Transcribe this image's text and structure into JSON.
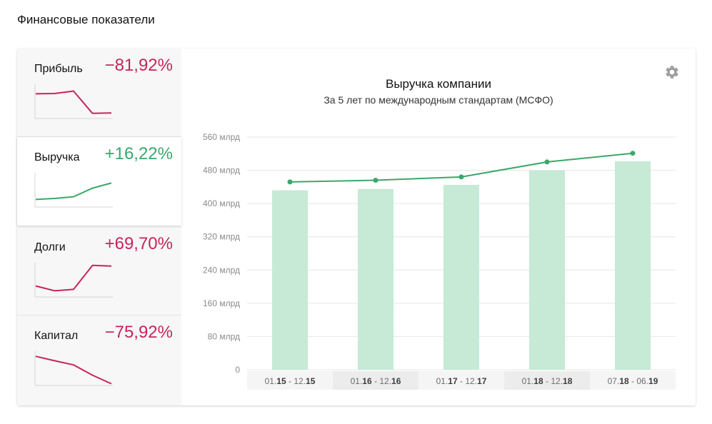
{
  "page": {
    "title": "Финансовые показатели"
  },
  "metrics": [
    {
      "label": "Прибыль",
      "change": "−81,92%",
      "trend": "negative",
      "sparkline": [
        0.72,
        0.73,
        0.8,
        0.15,
        0.16
      ]
    },
    {
      "label": "Выручка",
      "change": "+16,22%",
      "trend": "positive",
      "sparkline": [
        0.22,
        0.25,
        0.3,
        0.55,
        0.7
      ]
    },
    {
      "label": "Долги",
      "change": "+69,70%",
      "trend": "negative",
      "sparkline": [
        0.32,
        0.18,
        0.22,
        0.92,
        0.9
      ]
    },
    {
      "label": "Капитал",
      "change": "−75,92%",
      "trend": "negative",
      "sparkline": [
        0.85,
        0.72,
        0.6,
        0.3,
        0.05
      ]
    }
  ],
  "colors": {
    "negative": "#c8245c",
    "positive": "#3aa86b",
    "bar": "#c6ead5",
    "line": "#3aa86b",
    "grid": "#e6e6e6",
    "cat_bg_alt": "#ececec",
    "cat_bg": "#f5f5f5"
  },
  "icons": {
    "settings": "gear-icon"
  },
  "chart_data": {
    "type": "bar",
    "title": "Выручка компании",
    "subtitle": "За 5 лет по международным стандартам (МСФО)",
    "categories": [
      {
        "parts": [
          "01.",
          "15",
          " - 12.",
          "15"
        ]
      },
      {
        "parts": [
          "01.",
          "16",
          " - 12.",
          "16"
        ]
      },
      {
        "parts": [
          "01.",
          "17",
          " - 12.",
          "17"
        ]
      },
      {
        "parts": [
          "01.",
          "18",
          " - 12.",
          "18"
        ]
      },
      {
        "parts": [
          "07.",
          "18",
          " - 06.",
          "19"
        ]
      }
    ],
    "bars": [
      432,
      435,
      445,
      480,
      502
    ],
    "line": [
      452,
      456,
      464,
      500,
      521
    ],
    "ylim": [
      0,
      560
    ],
    "yticks": [
      0,
      80,
      160,
      240,
      320,
      400,
      480,
      560
    ],
    "ytick_labels": [
      "0",
      "80 млрд",
      "160 млрд",
      "240 млрд",
      "320 млрд",
      "400 млрд",
      "480 млрд",
      "560 млрд"
    ],
    "grid": true,
    "legend": "none"
  }
}
